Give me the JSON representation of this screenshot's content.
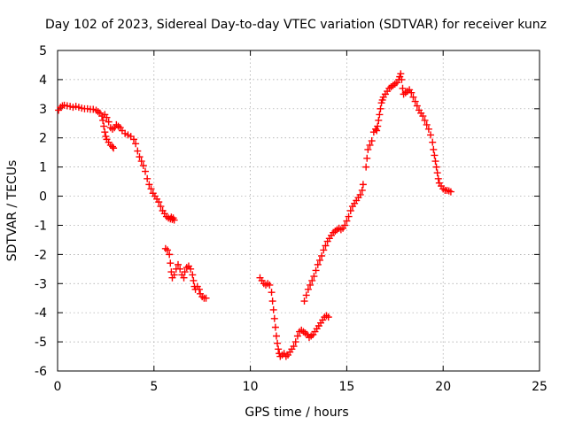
{
  "chart_data": {
    "type": "scatter",
    "title": "Day 102 of 2023, Sidereal Day-to-day VTEC variation (SDTVAR) for receiver kunz",
    "xlabel": "GPS time / hours",
    "ylabel": "SDTVAR / TECUs",
    "xlim": [
      0,
      25
    ],
    "ylim": [
      -6,
      5
    ],
    "xticks": [
      "0",
      "5",
      "10",
      "15",
      "20",
      "25"
    ],
    "yticks": [
      "5",
      "4",
      "3",
      "2",
      "1",
      "0",
      "-1",
      "-2",
      "-3",
      "-4",
      "-5",
      "-6"
    ],
    "grid": true,
    "marker": "plus",
    "series": [
      {
        "color": "#ff0000",
        "points": [
          [
            0.05,
            2.95
          ],
          [
            0.15,
            3.05
          ],
          [
            0.25,
            3.1
          ],
          [
            0.35,
            3.12
          ],
          [
            0.5,
            3.1
          ],
          [
            0.65,
            3.08
          ],
          [
            0.8,
            3.05
          ],
          [
            0.95,
            3.08
          ],
          [
            1.1,
            3.05
          ],
          [
            1.25,
            3.02
          ],
          [
            1.4,
            3.0
          ],
          [
            1.55,
            3.0
          ],
          [
            1.7,
            2.98
          ],
          [
            1.85,
            2.98
          ],
          [
            2.0,
            2.95
          ],
          [
            2.1,
            2.9
          ],
          [
            2.2,
            2.85
          ],
          [
            2.3,
            2.75
          ],
          [
            2.35,
            2.6
          ],
          [
            2.4,
            2.4
          ],
          [
            2.45,
            2.2
          ],
          [
            2.5,
            2.05
          ],
          [
            2.55,
            1.95
          ],
          [
            2.65,
            1.85
          ],
          [
            2.75,
            1.75
          ],
          [
            2.85,
            1.7
          ],
          [
            2.9,
            1.65
          ],
          [
            2.45,
            2.8
          ],
          [
            2.55,
            2.7
          ],
          [
            2.65,
            2.55
          ],
          [
            2.75,
            2.35
          ],
          [
            2.85,
            2.3
          ],
          [
            2.95,
            2.35
          ],
          [
            3.05,
            2.45
          ],
          [
            3.15,
            2.4
          ],
          [
            3.25,
            2.35
          ],
          [
            3.35,
            2.25
          ],
          [
            3.5,
            2.15
          ],
          [
            3.65,
            2.1
          ],
          [
            3.8,
            2.05
          ],
          [
            3.95,
            1.95
          ],
          [
            4.05,
            1.8
          ],
          [
            4.15,
            1.55
          ],
          [
            4.25,
            1.35
          ],
          [
            4.35,
            1.2
          ],
          [
            4.45,
            1.05
          ],
          [
            4.55,
            0.85
          ],
          [
            4.65,
            0.6
          ],
          [
            4.75,
            0.4
          ],
          [
            4.85,
            0.25
          ],
          [
            4.95,
            0.1
          ],
          [
            5.05,
            0.0
          ],
          [
            5.15,
            -0.1
          ],
          [
            5.25,
            -0.2
          ],
          [
            5.35,
            -0.35
          ],
          [
            5.45,
            -0.5
          ],
          [
            5.55,
            -0.6
          ],
          [
            5.65,
            -0.7
          ],
          [
            5.75,
            -0.75
          ],
          [
            5.85,
            -0.78
          ],
          [
            5.95,
            -0.8
          ],
          [
            6.05,
            -0.82
          ],
          [
            6.0,
            -0.75
          ],
          [
            5.9,
            -0.72
          ],
          [
            5.6,
            -1.8
          ],
          [
            5.7,
            -1.85
          ],
          [
            5.8,
            -2.0
          ],
          [
            5.85,
            -2.3
          ],
          [
            5.9,
            -2.6
          ],
          [
            5.95,
            -2.8
          ],
          [
            6.05,
            -2.7
          ],
          [
            6.15,
            -2.5
          ],
          [
            6.25,
            -2.35
          ],
          [
            6.35,
            -2.5
          ],
          [
            6.45,
            -2.7
          ],
          [
            6.55,
            -2.8
          ],
          [
            6.6,
            -2.6
          ],
          [
            6.7,
            -2.45
          ],
          [
            6.8,
            -2.4
          ],
          [
            6.9,
            -2.5
          ],
          [
            7.0,
            -2.7
          ],
          [
            7.05,
            -2.9
          ],
          [
            7.1,
            -3.1
          ],
          [
            7.15,
            -3.2
          ],
          [
            7.25,
            -3.1
          ],
          [
            7.35,
            -3.2
          ],
          [
            7.4,
            -3.35
          ],
          [
            7.5,
            -3.45
          ],
          [
            7.6,
            -3.5
          ],
          [
            7.7,
            -3.5
          ],
          [
            10.5,
            -2.8
          ],
          [
            10.6,
            -2.9
          ],
          [
            10.7,
            -3.0
          ],
          [
            10.8,
            -3.05
          ],
          [
            10.9,
            -3.0
          ],
          [
            11.0,
            -3.05
          ],
          [
            11.1,
            -3.3
          ],
          [
            11.15,
            -3.6
          ],
          [
            11.2,
            -3.9
          ],
          [
            11.25,
            -4.2
          ],
          [
            11.3,
            -4.5
          ],
          [
            11.35,
            -4.8
          ],
          [
            11.4,
            -5.05
          ],
          [
            11.45,
            -5.25
          ],
          [
            11.5,
            -5.4
          ],
          [
            11.55,
            -5.5
          ],
          [
            11.65,
            -5.45
          ],
          [
            11.75,
            -5.4
          ],
          [
            11.85,
            -5.5
          ],
          [
            11.95,
            -5.45
          ],
          [
            12.05,
            -5.35
          ],
          [
            12.15,
            -5.25
          ],
          [
            12.25,
            -5.15
          ],
          [
            12.35,
            -5.0
          ],
          [
            12.45,
            -4.8
          ],
          [
            12.55,
            -4.65
          ],
          [
            12.65,
            -4.6
          ],
          [
            12.75,
            -4.65
          ],
          [
            12.85,
            -4.7
          ],
          [
            12.95,
            -4.75
          ],
          [
            13.05,
            -4.85
          ],
          [
            13.15,
            -4.8
          ],
          [
            13.25,
            -4.75
          ],
          [
            13.35,
            -4.65
          ],
          [
            13.45,
            -4.55
          ],
          [
            13.55,
            -4.45
          ],
          [
            13.65,
            -4.35
          ],
          [
            13.75,
            -4.25
          ],
          [
            13.85,
            -4.15
          ],
          [
            13.95,
            -4.1
          ],
          [
            14.05,
            -4.15
          ],
          [
            12.8,
            -3.6
          ],
          [
            12.9,
            -3.4
          ],
          [
            13.0,
            -3.2
          ],
          [
            13.1,
            -3.05
          ],
          [
            13.2,
            -2.9
          ],
          [
            13.3,
            -2.75
          ],
          [
            13.4,
            -2.55
          ],
          [
            13.5,
            -2.35
          ],
          [
            13.6,
            -2.2
          ],
          [
            13.7,
            -2.05
          ],
          [
            13.8,
            -1.85
          ],
          [
            13.9,
            -1.7
          ],
          [
            14.0,
            -1.55
          ],
          [
            14.1,
            -1.45
          ],
          [
            14.2,
            -1.35
          ],
          [
            14.3,
            -1.25
          ],
          [
            14.4,
            -1.2
          ],
          [
            14.5,
            -1.15
          ],
          [
            14.6,
            -1.1
          ],
          [
            14.7,
            -1.15
          ],
          [
            14.8,
            -1.1
          ],
          [
            14.9,
            -1.0
          ],
          [
            15.0,
            -0.85
          ],
          [
            15.1,
            -0.7
          ],
          [
            15.2,
            -0.5
          ],
          [
            15.3,
            -0.35
          ],
          [
            15.4,
            -0.25
          ],
          [
            15.5,
            -0.15
          ],
          [
            15.6,
            -0.05
          ],
          [
            15.7,
            0.05
          ],
          [
            15.8,
            0.2
          ],
          [
            15.85,
            0.4
          ],
          [
            16.0,
            1.0
          ],
          [
            16.05,
            1.3
          ],
          [
            16.1,
            1.6
          ],
          [
            16.2,
            1.75
          ],
          [
            16.3,
            1.9
          ],
          [
            16.4,
            2.2
          ],
          [
            16.5,
            2.3
          ],
          [
            16.55,
            2.25
          ],
          [
            16.6,
            2.4
          ],
          [
            16.65,
            2.6
          ],
          [
            16.7,
            2.8
          ],
          [
            16.75,
            3.0
          ],
          [
            16.8,
            3.2
          ],
          [
            16.85,
            3.3
          ],
          [
            16.9,
            3.4
          ],
          [
            17.0,
            3.5
          ],
          [
            17.1,
            3.6
          ],
          [
            17.2,
            3.7
          ],
          [
            17.3,
            3.75
          ],
          [
            17.4,
            3.8
          ],
          [
            17.5,
            3.85
          ],
          [
            17.6,
            3.9
          ],
          [
            17.7,
            4.0
          ],
          [
            17.75,
            4.1
          ],
          [
            17.8,
            4.2
          ],
          [
            17.85,
            4.0
          ],
          [
            17.9,
            3.7
          ],
          [
            17.95,
            3.5
          ],
          [
            18.05,
            3.55
          ],
          [
            18.15,
            3.6
          ],
          [
            18.25,
            3.65
          ],
          [
            18.35,
            3.55
          ],
          [
            18.45,
            3.4
          ],
          [
            18.55,
            3.25
          ],
          [
            18.65,
            3.1
          ],
          [
            18.75,
            2.95
          ],
          [
            18.85,
            2.85
          ],
          [
            18.95,
            2.75
          ],
          [
            19.05,
            2.6
          ],
          [
            19.15,
            2.45
          ],
          [
            19.25,
            2.3
          ],
          [
            19.35,
            2.1
          ],
          [
            19.45,
            1.85
          ],
          [
            19.5,
            1.6
          ],
          [
            19.55,
            1.4
          ],
          [
            19.6,
            1.2
          ],
          [
            19.65,
            1.0
          ],
          [
            19.7,
            0.8
          ],
          [
            19.75,
            0.6
          ],
          [
            19.8,
            0.45
          ],
          [
            19.9,
            0.35
          ],
          [
            20.0,
            0.25
          ],
          [
            20.1,
            0.2
          ],
          [
            20.2,
            0.2
          ],
          [
            20.3,
            0.18
          ],
          [
            20.4,
            0.15
          ]
        ]
      }
    ]
  }
}
